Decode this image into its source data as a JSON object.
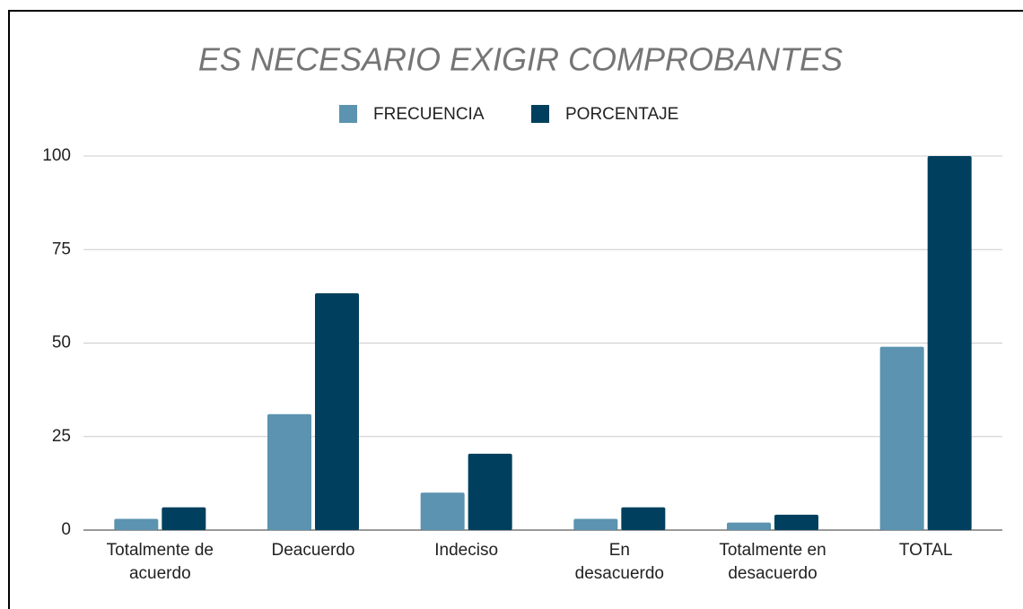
{
  "chart_data": {
    "type": "bar",
    "title": "ES NECESARIO EXIGIR COMPROBANTES",
    "categories": [
      "Totalmente de acuerdo",
      "Deacuerdo",
      "Indeciso",
      "En desacuerdo",
      "Totalmente en desacuerdo",
      "TOTAL"
    ],
    "series": [
      {
        "name": "FRECUENCIA",
        "color": "#5b93b0",
        "values": [
          3,
          31,
          10,
          3,
          2,
          49
        ]
      },
      {
        "name": "PORCENTAJE",
        "color": "#00405e",
        "values": [
          6.1,
          63.3,
          20.4,
          6.1,
          4.1,
          100
        ]
      }
    ],
    "ylim": [
      0,
      100
    ],
    "yticks": [
      0,
      25,
      50,
      75,
      100
    ],
    "grid": true,
    "legend": "top"
  }
}
